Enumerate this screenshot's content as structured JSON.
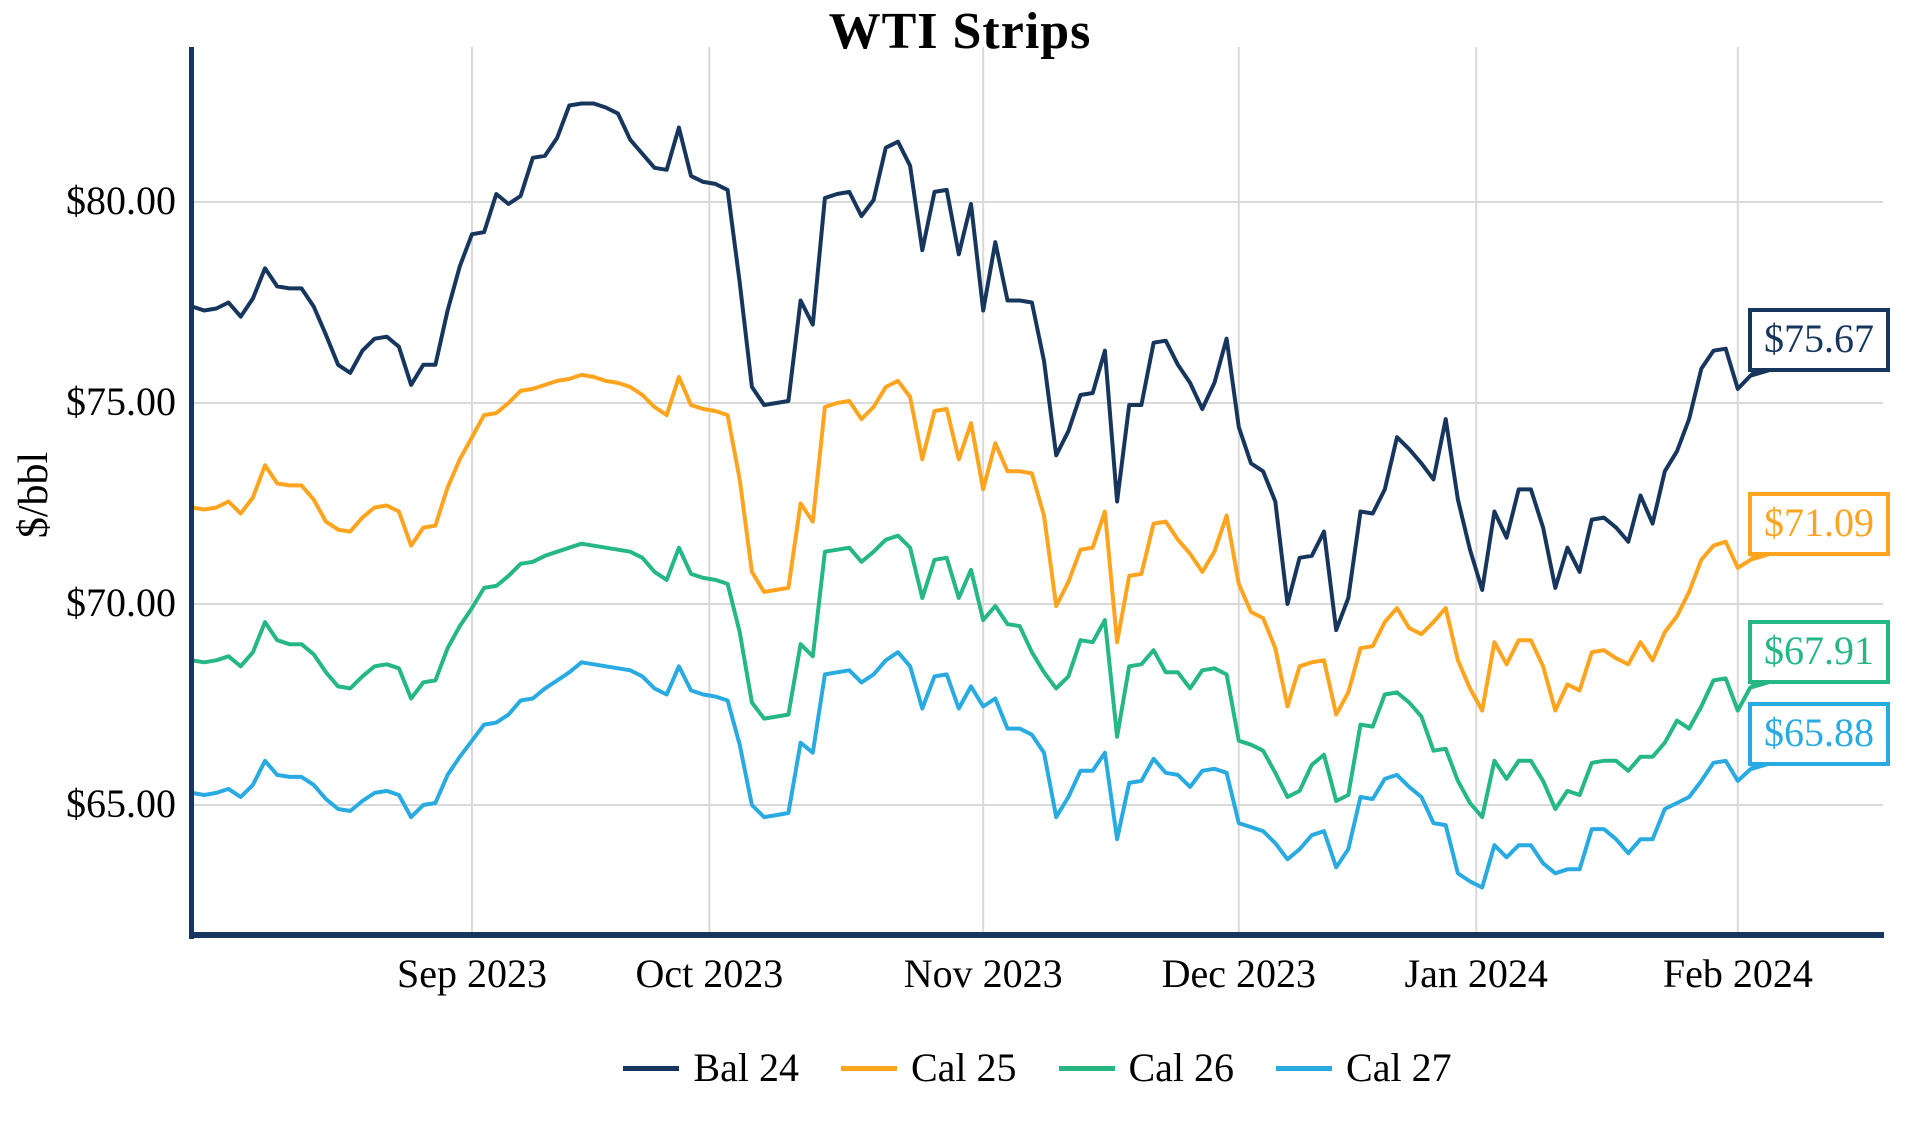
{
  "chart": {
    "title": "WTI Strips",
    "ylabel": "$/bbl"
  },
  "chart_data": {
    "type": "line",
    "title": "WTI Strips",
    "xlabel": "",
    "ylabel": "$/bbl",
    "grid": true,
    "legend_position": "bottom",
    "ylim": [
      61.8,
      83.9
    ],
    "axis_color": "#17365D",
    "grid_color": "#D9D9D9",
    "yticks": [
      {
        "label": "$65.00",
        "value": 65
      },
      {
        "label": "$70.00",
        "value": 70
      },
      {
        "label": "$75.00",
        "value": 75
      },
      {
        "label": "$80.00",
        "value": 80
      }
    ],
    "xticks": [
      {
        "label": "Sep 2023",
        "month": "2023-09"
      },
      {
        "label": "Oct 2023",
        "month": "2023-10"
      },
      {
        "label": "Nov 2023",
        "month": "2023-11"
      },
      {
        "label": "Dec 2023",
        "month": "2023-12"
      },
      {
        "label": "Jan 2024",
        "month": "2024-01"
      },
      {
        "label": "Feb 2024",
        "month": "2024-02"
      }
    ],
    "dates": [
      "2023-08-01",
      "2023-08-02",
      "2023-08-03",
      "2023-08-04",
      "2023-08-07",
      "2023-08-08",
      "2023-08-09",
      "2023-08-10",
      "2023-08-11",
      "2023-08-14",
      "2023-08-15",
      "2023-08-16",
      "2023-08-17",
      "2023-08-18",
      "2023-08-21",
      "2023-08-22",
      "2023-08-23",
      "2023-08-24",
      "2023-08-25",
      "2023-08-28",
      "2023-08-29",
      "2023-08-30",
      "2023-08-31",
      "2023-09-01",
      "2023-09-05",
      "2023-09-06",
      "2023-09-07",
      "2023-09-08",
      "2023-09-11",
      "2023-09-12",
      "2023-09-13",
      "2023-09-14",
      "2023-09-15",
      "2023-09-18",
      "2023-09-19",
      "2023-09-20",
      "2023-09-21",
      "2023-09-22",
      "2023-09-25",
      "2023-09-26",
      "2023-09-27",
      "2023-09-28",
      "2023-09-29",
      "2023-10-02",
      "2023-10-03",
      "2023-10-04",
      "2023-10-05",
      "2023-10-06",
      "2023-10-09",
      "2023-10-10",
      "2023-10-11",
      "2023-10-12",
      "2023-10-13",
      "2023-10-16",
      "2023-10-17",
      "2023-10-18",
      "2023-10-19",
      "2023-10-20",
      "2023-10-23",
      "2023-10-24",
      "2023-10-25",
      "2023-10-26",
      "2023-10-27",
      "2023-10-30",
      "2023-10-31",
      "2023-11-01",
      "2023-11-02",
      "2023-11-03",
      "2023-11-06",
      "2023-11-07",
      "2023-11-08",
      "2023-11-09",
      "2023-11-10",
      "2023-11-13",
      "2023-11-14",
      "2023-11-15",
      "2023-11-16",
      "2023-11-17",
      "2023-11-20",
      "2023-11-21",
      "2023-11-22",
      "2023-11-24",
      "2023-11-27",
      "2023-11-28",
      "2023-11-29",
      "2023-11-30",
      "2023-12-01",
      "2023-12-04",
      "2023-12-05",
      "2023-12-06",
      "2023-12-07",
      "2023-12-08",
      "2023-12-11",
      "2023-12-12",
      "2023-12-13",
      "2023-12-14",
      "2023-12-15",
      "2023-12-18",
      "2023-12-19",
      "2023-12-20",
      "2023-12-21",
      "2023-12-22",
      "2023-12-26",
      "2023-12-27",
      "2023-12-28",
      "2023-12-29",
      "2024-01-02",
      "2024-01-03",
      "2024-01-04",
      "2024-01-05",
      "2024-01-08",
      "2024-01-09",
      "2024-01-10",
      "2024-01-11",
      "2024-01-12",
      "2024-01-16",
      "2024-01-17",
      "2024-01-18",
      "2024-01-19",
      "2024-01-22",
      "2024-01-23",
      "2024-01-24",
      "2024-01-25",
      "2024-01-26",
      "2024-01-29",
      "2024-01-30",
      "2024-01-31",
      "2024-02-01",
      "2024-02-02"
    ],
    "series": [
      {
        "name": "Bal 24",
        "color": "#17365D",
        "end_label": "$75.67",
        "end_value": 75.67,
        "values": [
          77.4,
          77.3,
          77.35,
          77.5,
          77.15,
          77.6,
          78.35,
          77.9,
          77.85,
          77.85,
          77.4,
          76.7,
          75.95,
          75.75,
          76.3,
          76.6,
          76.65,
          76.4,
          75.45,
          75.95,
          75.95,
          77.3,
          78.4,
          79.2,
          79.25,
          80.2,
          79.95,
          80.15,
          81.1,
          81.15,
          81.6,
          82.4,
          82.45,
          82.45,
          82.35,
          82.2,
          81.55,
          81.2,
          80.85,
          80.8,
          81.85,
          80.65,
          80.5,
          80.45,
          80.3,
          78.0,
          75.4,
          74.95,
          75.0,
          75.05,
          77.55,
          76.95,
          80.1,
          80.2,
          80.25,
          79.65,
          80.05,
          81.35,
          81.5,
          80.9,
          78.8,
          80.25,
          80.3,
          78.7,
          79.95,
          77.3,
          79.0,
          77.55,
          77.55,
          77.5,
          76.05,
          73.7,
          74.3,
          75.2,
          75.25,
          76.3,
          72.55,
          74.95,
          74.95,
          76.5,
          76.55,
          75.95,
          75.5,
          74.85,
          75.5,
          76.6,
          74.4,
          73.5,
          73.3,
          72.55,
          70.0,
          71.15,
          71.2,
          71.8,
          69.35,
          70.15,
          72.3,
          72.25,
          72.85,
          74.15,
          73.85,
          73.5,
          73.1,
          74.6,
          72.6,
          71.35,
          70.35,
          72.3,
          71.65,
          72.85,
          72.85,
          71.9,
          70.4,
          71.4,
          70.8,
          72.1,
          72.15,
          71.9,
          71.55,
          72.7,
          72.0,
          73.3,
          73.8,
          74.6,
          75.85,
          76.3,
          76.35,
          75.35,
          75.67
        ]
      },
      {
        "name": "Cal 25",
        "color": "#FFA41E",
        "end_label": "$71.09",
        "end_value": 71.09,
        "values": [
          72.4,
          72.35,
          72.4,
          72.55,
          72.25,
          72.65,
          73.45,
          73.0,
          72.95,
          72.95,
          72.6,
          72.05,
          71.85,
          71.8,
          72.15,
          72.4,
          72.45,
          72.3,
          71.45,
          71.9,
          71.95,
          72.9,
          73.6,
          74.15,
          74.7,
          74.75,
          75.0,
          75.3,
          75.35,
          75.45,
          75.55,
          75.6,
          75.7,
          75.65,
          75.55,
          75.5,
          75.4,
          75.2,
          74.9,
          74.7,
          75.65,
          74.95,
          74.85,
          74.8,
          74.7,
          73.1,
          70.8,
          70.3,
          70.35,
          70.4,
          72.5,
          72.05,
          74.9,
          75.0,
          75.05,
          74.6,
          74.9,
          75.4,
          75.55,
          75.15,
          73.6,
          74.8,
          74.85,
          73.6,
          74.5,
          72.85,
          74.0,
          73.3,
          73.3,
          73.25,
          72.2,
          69.95,
          70.55,
          71.35,
          71.4,
          72.3,
          69.05,
          70.7,
          70.75,
          72.0,
          72.05,
          71.6,
          71.25,
          70.8,
          71.3,
          72.2,
          70.5,
          69.8,
          69.65,
          68.9,
          67.45,
          68.45,
          68.55,
          68.6,
          67.25,
          67.8,
          68.9,
          68.95,
          69.55,
          69.9,
          69.4,
          69.25,
          69.55,
          69.9,
          68.6,
          67.9,
          67.35,
          69.05,
          68.5,
          69.1,
          69.1,
          68.45,
          67.35,
          68.0,
          67.85,
          68.8,
          68.85,
          68.65,
          68.5,
          69.05,
          68.6,
          69.3,
          69.7,
          70.3,
          71.1,
          71.45,
          71.55,
          70.9,
          71.09
        ]
      },
      {
        "name": "Cal 26",
        "color": "#25B784",
        "end_label": "$67.91",
        "end_value": 67.91,
        "values": [
          68.6,
          68.55,
          68.6,
          68.7,
          68.45,
          68.8,
          69.55,
          69.1,
          69.0,
          69.0,
          68.75,
          68.3,
          67.95,
          67.9,
          68.2,
          68.45,
          68.5,
          68.4,
          67.65,
          68.05,
          68.1,
          68.9,
          69.45,
          69.9,
          70.4,
          70.45,
          70.7,
          71.0,
          71.05,
          71.2,
          71.3,
          71.4,
          71.5,
          71.45,
          71.4,
          71.35,
          71.3,
          71.15,
          70.8,
          70.6,
          71.4,
          70.75,
          70.65,
          70.6,
          70.5,
          69.3,
          67.55,
          67.15,
          67.2,
          67.25,
          69.0,
          68.7,
          71.3,
          71.35,
          71.4,
          71.05,
          71.3,
          71.6,
          71.7,
          71.4,
          70.15,
          71.1,
          71.15,
          70.15,
          70.85,
          69.6,
          69.95,
          69.5,
          69.45,
          68.8,
          68.3,
          67.9,
          68.2,
          69.1,
          69.05,
          69.6,
          66.7,
          68.45,
          68.5,
          68.85,
          68.3,
          68.3,
          67.9,
          68.35,
          68.4,
          68.25,
          66.6,
          66.5,
          66.35,
          65.8,
          65.2,
          65.35,
          66.0,
          66.25,
          65.1,
          65.25,
          67.0,
          66.95,
          67.75,
          67.8,
          67.55,
          67.2,
          66.35,
          66.4,
          65.6,
          65.05,
          64.7,
          66.1,
          65.65,
          66.1,
          66.1,
          65.6,
          64.9,
          65.35,
          65.25,
          66.05,
          66.1,
          66.1,
          65.85,
          66.2,
          66.2,
          66.55,
          67.1,
          66.9,
          67.45,
          68.1,
          68.15,
          67.35,
          67.91
        ]
      },
      {
        "name": "Cal 27",
        "color": "#29ABE2",
        "end_label": "$65.88",
        "end_value": 65.88,
        "values": [
          65.3,
          65.25,
          65.3,
          65.4,
          65.2,
          65.5,
          66.1,
          65.75,
          65.7,
          65.7,
          65.5,
          65.15,
          64.9,
          64.85,
          65.1,
          65.3,
          65.35,
          65.25,
          64.7,
          65.0,
          65.05,
          65.75,
          66.2,
          66.6,
          67.0,
          67.05,
          67.25,
          67.6,
          67.65,
          67.9,
          68.1,
          68.3,
          68.55,
          68.5,
          68.45,
          68.4,
          68.35,
          68.2,
          67.9,
          67.75,
          68.45,
          67.85,
          67.75,
          67.7,
          67.6,
          66.5,
          65.0,
          64.7,
          64.75,
          64.8,
          66.55,
          66.3,
          68.25,
          68.3,
          68.35,
          68.05,
          68.25,
          68.6,
          68.8,
          68.45,
          67.4,
          68.2,
          68.25,
          67.4,
          67.95,
          67.45,
          67.65,
          66.9,
          66.9,
          66.75,
          66.3,
          64.7,
          65.2,
          65.85,
          65.85,
          66.3,
          64.15,
          65.55,
          65.6,
          66.15,
          65.8,
          65.75,
          65.45,
          65.85,
          65.9,
          65.8,
          64.55,
          64.45,
          64.35,
          64.05,
          63.65,
          63.9,
          64.25,
          64.35,
          63.45,
          63.9,
          65.2,
          65.15,
          65.65,
          65.75,
          65.45,
          65.2,
          64.55,
          64.5,
          63.3,
          63.1,
          62.95,
          64.0,
          63.7,
          64.0,
          64.0,
          63.55,
          63.3,
          63.4,
          63.4,
          64.4,
          64.4,
          64.15,
          63.8,
          64.15,
          64.15,
          64.9,
          65.05,
          65.2,
          65.6,
          66.05,
          66.1,
          65.6,
          65.88
        ]
      }
    ]
  }
}
